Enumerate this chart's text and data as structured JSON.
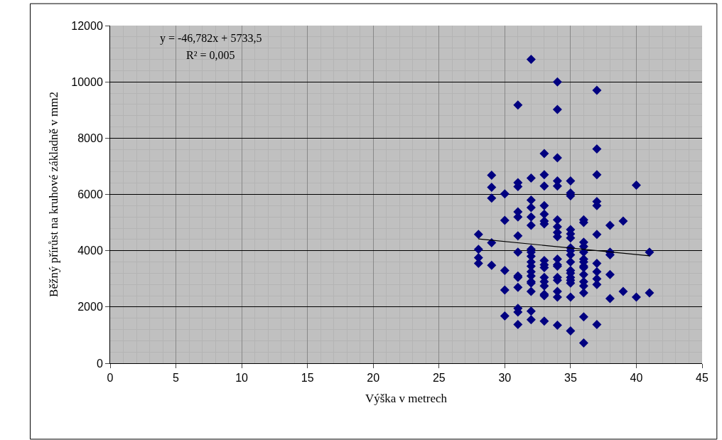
{
  "chart_data": {
    "type": "scatter",
    "xlabel": "Výška v metrech",
    "ylabel": "Běžný přírůst na kruhové základně v mm2",
    "annotations": [
      "y = -46,782x + 5733,5",
      "R² = 0,005"
    ],
    "xlim": [
      0,
      45
    ],
    "xticks": [
      0,
      5,
      10,
      15,
      20,
      25,
      30,
      35,
      40,
      45
    ],
    "ylim": [
      0,
      12000
    ],
    "yticks": [
      0,
      2000,
      4000,
      6000,
      8000,
      10000,
      12000
    ],
    "grid": true,
    "marker": "diamond",
    "series": [
      {
        "color": "#000080",
        "x": [
          28,
          28,
          28,
          28,
          29,
          29,
          29,
          29,
          29,
          30,
          30,
          30,
          30,
          30,
          31,
          31,
          31,
          31,
          31,
          31,
          31,
          31,
          31,
          31,
          31,
          31,
          31,
          32,
          32,
          32,
          32,
          32,
          32,
          32,
          32,
          32,
          32,
          32,
          32,
          32,
          32,
          32,
          32,
          32,
          32,
          33,
          33,
          33,
          33,
          33,
          33,
          33,
          33,
          33,
          33,
          33,
          33,
          33,
          33,
          33,
          33,
          34,
          34,
          34,
          34,
          34,
          34,
          34,
          34,
          34,
          34,
          34,
          34,
          34,
          34,
          34,
          34,
          34,
          35,
          35,
          35,
          35,
          35,
          35,
          35,
          35,
          35,
          35,
          35,
          35,
          35,
          35,
          35,
          35,
          35,
          36,
          36,
          36,
          36,
          36,
          36,
          36,
          36,
          36,
          36,
          36,
          36,
          36,
          36,
          36,
          37,
          37,
          37,
          37,
          37,
          37,
          37,
          37,
          37,
          37,
          37,
          38,
          38,
          38,
          38,
          38,
          39,
          39,
          40,
          40,
          41,
          41
        ],
        "values": [
          4580,
          4050,
          3750,
          3550,
          6680,
          6250,
          5870,
          4280,
          3480,
          6020,
          5080,
          3300,
          2600,
          1680,
          9180,
          6420,
          6280,
          5380,
          5200,
          4530,
          3950,
          3100,
          3050,
          2700,
          1950,
          1820,
          1380,
          10800,
          6580,
          5800,
          5530,
          5200,
          4900,
          4050,
          3950,
          3800,
          3600,
          3450,
          3250,
          3100,
          2900,
          2850,
          2550,
          1850,
          1550,
          7450,
          6700,
          6300,
          5600,
          5300,
          5050,
          4950,
          3650,
          3500,
          3400,
          3050,
          2900,
          2750,
          2450,
          2400,
          1500,
          10000,
          9020,
          7300,
          6480,
          6300,
          5100,
          4850,
          4650,
          4500,
          3700,
          3500,
          3450,
          3050,
          2950,
          2550,
          2350,
          1350,
          6480,
          6050,
          5950,
          4750,
          4600,
          4450,
          4100,
          4000,
          3850,
          3600,
          3300,
          3200,
          3050,
          2950,
          2850,
          2350,
          1150,
          5100,
          5000,
          4300,
          4150,
          3950,
          3700,
          3600,
          3450,
          3400,
          3150,
          2900,
          2750,
          2500,
          1650,
          720,
          9700,
          7620,
          6700,
          5750,
          5600,
          4580,
          3550,
          3250,
          3000,
          2800,
          1380,
          4900,
          3950,
          3850,
          3150,
          2300,
          5050,
          2550,
          6330,
          2350,
          3950,
          2500
        ]
      },
      {
        "type": "line",
        "color": "#000000",
        "marker": "none",
        "x": [
          28,
          41
        ],
        "values": [
          4420,
          3820
        ]
      }
    ]
  }
}
